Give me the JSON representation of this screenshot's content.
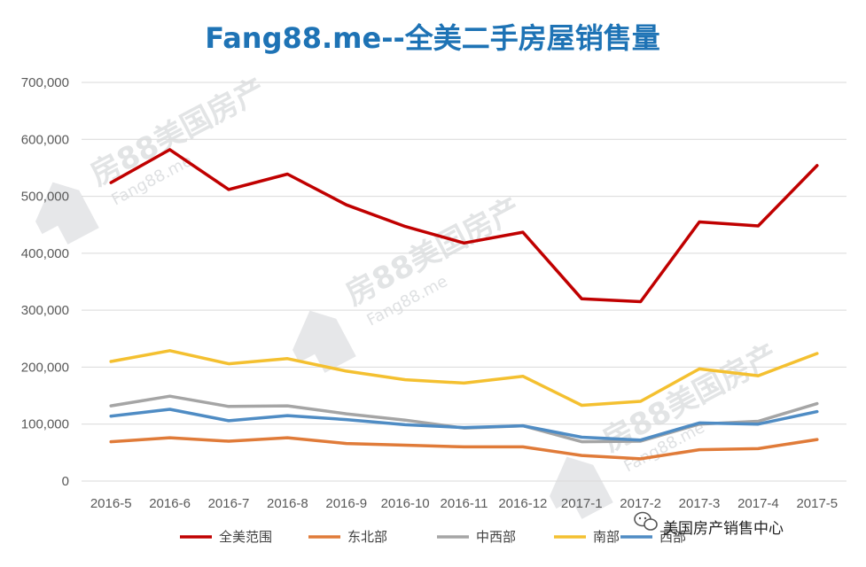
{
  "chart_data": {
    "type": "line",
    "title": "Fang88.me--全美二手房屋销售量",
    "categories": [
      "2016-5",
      "2016-6",
      "2016-7",
      "2016-8",
      "2016-9",
      "2016-10",
      "2016-11",
      "2016-12",
      "2017-1",
      "2017-2",
      "2017-3",
      "2017-4",
      "2017-5"
    ],
    "ylim": [
      0,
      700000
    ],
    "yticks": [
      0,
      100000,
      200000,
      300000,
      400000,
      500000,
      600000,
      700000
    ],
    "ytick_labels": [
      "0",
      "100,000",
      "200,000",
      "300,000",
      "400,000",
      "500,000",
      "600,000",
      "700,000"
    ],
    "grid": true,
    "legend_position": "bottom",
    "series": [
      {
        "name": "全美范围",
        "color": "#c00000",
        "values": [
          524000,
          582000,
          512000,
          539000,
          485000,
          447000,
          418000,
          437000,
          320000,
          315000,
          455000,
          448000,
          554000
        ]
      },
      {
        "name": "东北部",
        "color": "#e07b39",
        "values": [
          69000,
          76000,
          70000,
          76000,
          66000,
          63000,
          60000,
          60000,
          45000,
          39000,
          55000,
          57000,
          73000
        ]
      },
      {
        "name": "中西部",
        "color": "#a5a5a5",
        "values": [
          132000,
          149000,
          131000,
          132000,
          118000,
          107000,
          93000,
          97000,
          69000,
          70000,
          100000,
          105000,
          136000
        ]
      },
      {
        "name": "南部",
        "color": "#f4c030",
        "values": [
          210000,
          229000,
          206000,
          215000,
          193000,
          178000,
          172000,
          184000,
          133000,
          140000,
          197000,
          185000,
          224000
        ]
      },
      {
        "name": "西部",
        "color": "#4f8cc4",
        "values": [
          114000,
          126000,
          106000,
          115000,
          108000,
          99000,
          94000,
          97000,
          77000,
          72000,
          102000,
          100000,
          122000
        ]
      }
    ]
  },
  "watermarks": {
    "brand_cn": "房88美国房产",
    "brand_en": "Fang88.me"
  },
  "overlay": {
    "account_icon": "wechat-icon",
    "account_name": "美国房产销售中心"
  }
}
